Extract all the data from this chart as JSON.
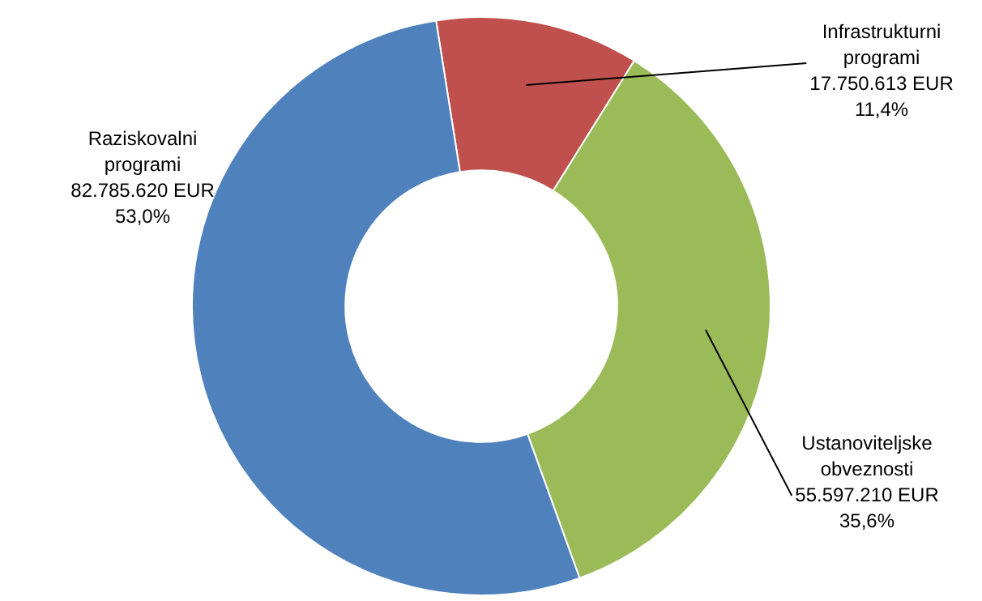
{
  "chart_data": {
    "type": "donut",
    "categories": [
      "Infrastrukturni programi",
      "Ustanoviteljske obveznosti",
      "Raziskovalni programi"
    ],
    "values": [
      17750613,
      55597210,
      82785620
    ],
    "colors": [
      "#c0504d",
      "#9bbb59",
      "#4f81bd"
    ],
    "value_labels": [
      "17.750.613 EUR\n11,4%",
      "55.597.210 EUR\n35,6%",
      "82.785.620 EUR\n53,0%"
    ],
    "legend": false
  }
}
